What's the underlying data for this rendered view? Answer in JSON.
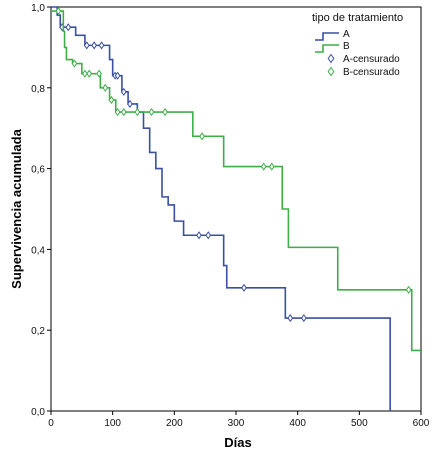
{
  "chart_data": {
    "type": "line",
    "step": true,
    "xlabel": "Días",
    "ylabel": "Supervivencia acumulada",
    "xlim": [
      0,
      600
    ],
    "ylim": [
      0,
      1.0
    ],
    "x_ticks": [
      0,
      100,
      200,
      300,
      400,
      500,
      600
    ],
    "y_ticks": [
      0.0,
      0.2,
      0.4,
      0.6,
      0.8,
      1.0
    ],
    "x_tick_labels": [
      "0",
      "100",
      "200",
      "300",
      "400",
      "500",
      "600"
    ],
    "y_tick_labels": [
      "0,0",
      "0,2",
      "0,4",
      "0,6",
      "0,8",
      "1,0"
    ],
    "grid": false,
    "legend": {
      "title": "tipo de tratamiento",
      "position": "top-right",
      "entries": [
        "A",
        "B",
        "A-censurado",
        "B-censurado"
      ]
    },
    "series": [
      {
        "name": "A",
        "color": "#3b4fa3",
        "step_points": [
          [
            0,
            1.0
          ],
          [
            10,
            0.98
          ],
          [
            15,
            0.95
          ],
          [
            40,
            0.93
          ],
          [
            55,
            0.905
          ],
          [
            95,
            0.87
          ],
          [
            100,
            0.83
          ],
          [
            115,
            0.79
          ],
          [
            125,
            0.76
          ],
          [
            140,
            0.74
          ],
          [
            150,
            0.7
          ],
          [
            160,
            0.64
          ],
          [
            170,
            0.6
          ],
          [
            180,
            0.53
          ],
          [
            190,
            0.51
          ],
          [
            200,
            0.47
          ],
          [
            215,
            0.435
          ],
          [
            280,
            0.36
          ],
          [
            285,
            0.305
          ],
          [
            380,
            0.23
          ],
          [
            550,
            0.0
          ]
        ],
        "end_x": 550,
        "censored": [
          [
            18,
            0.95
          ],
          [
            28,
            0.95
          ],
          [
            58,
            0.905
          ],
          [
            70,
            0.905
          ],
          [
            82,
            0.905
          ],
          [
            104,
            0.83
          ],
          [
            108,
            0.83
          ],
          [
            118,
            0.79
          ],
          [
            128,
            0.76
          ],
          [
            240,
            0.435
          ],
          [
            255,
            0.435
          ],
          [
            313,
            0.305
          ],
          [
            388,
            0.23
          ],
          [
            410,
            0.23
          ]
        ]
      },
      {
        "name": "B",
        "color": "#3fae49",
        "step_points": [
          [
            0,
            0.99
          ],
          [
            20,
            0.94
          ],
          [
            22,
            0.9
          ],
          [
            25,
            0.87
          ],
          [
            35,
            0.86
          ],
          [
            50,
            0.835
          ],
          [
            80,
            0.8
          ],
          [
            95,
            0.77
          ],
          [
            105,
            0.74
          ],
          [
            230,
            0.68
          ],
          [
            280,
            0.605
          ],
          [
            375,
            0.5
          ],
          [
            385,
            0.405
          ],
          [
            465,
            0.3
          ],
          [
            585,
            0.15
          ]
        ],
        "end_x": 600,
        "censored": [
          [
            12,
            0.99
          ],
          [
            38,
            0.86
          ],
          [
            55,
            0.835
          ],
          [
            62,
            0.835
          ],
          [
            78,
            0.835
          ],
          [
            88,
            0.8
          ],
          [
            98,
            0.77
          ],
          [
            108,
            0.74
          ],
          [
            118,
            0.74
          ],
          [
            140,
            0.74
          ],
          [
            163,
            0.74
          ],
          [
            185,
            0.74
          ],
          [
            245,
            0.68
          ],
          [
            345,
            0.605
          ],
          [
            358,
            0.605
          ],
          [
            580,
            0.3
          ]
        ]
      }
    ]
  }
}
